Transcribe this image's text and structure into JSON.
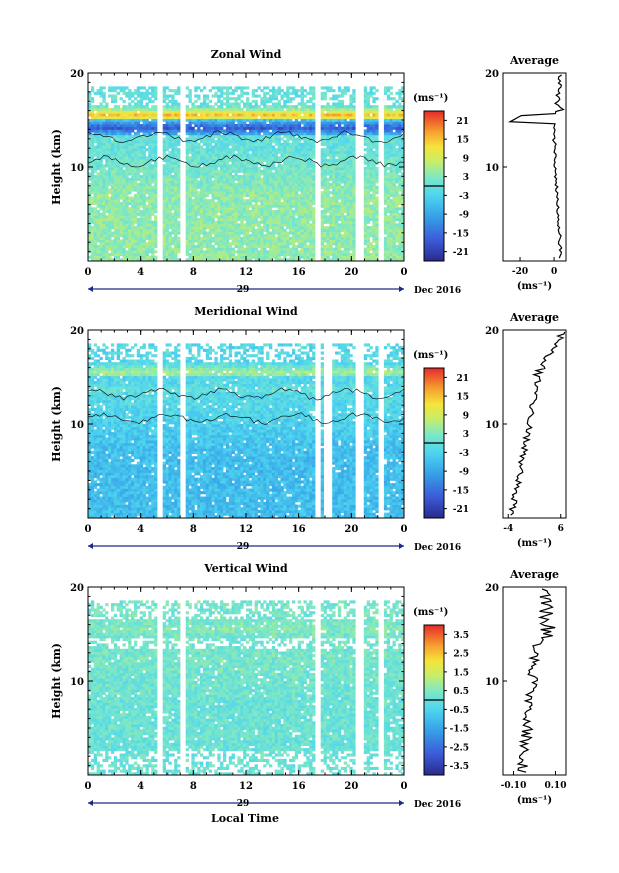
{
  "figure": {
    "xlabel": "Local Time",
    "date_label": "Dec 2016",
    "day_label": "29"
  },
  "chart_data": [
    {
      "type": "heatmap",
      "title": "Zonal Wind",
      "ylabel": "Height (km)",
      "ylim": [
        0,
        20
      ],
      "yticks": [
        "10",
        "20"
      ],
      "xlim": [
        0,
        24
      ],
      "xticks": [
        "0",
        "4",
        "8",
        "12",
        "16",
        "20",
        "0"
      ],
      "colorbar": {
        "unit": "(ms⁻¹)",
        "min": -24,
        "max": 24,
        "ticks": [
          "21",
          "15",
          "9",
          "3",
          "-3",
          "-9",
          "-15",
          "-21"
        ]
      },
      "gaps_hours": [
        5.5,
        7.2,
        17.4,
        20.6,
        22.2
      ],
      "field": {
        "low": 4,
        "mid": 0,
        "high_peak": 16,
        "high_height": 15.5,
        "deep": -18,
        "deep_height": 14.2
      },
      "profile": {
        "title": "Average",
        "xlabel": "(ms⁻¹)",
        "xticks": [
          "-20",
          "0"
        ],
        "xlim": [
          -30,
          7
        ]
      }
    },
    {
      "type": "heatmap",
      "title": "Meridional Wind",
      "ylabel": "Height (km)",
      "ylim": [
        0,
        20
      ],
      "yticks": [
        "10",
        "20"
      ],
      "xlim": [
        0,
        24
      ],
      "xticks": [
        "0",
        "4",
        "8",
        "12",
        "16",
        "20",
        "0"
      ],
      "colorbar": {
        "unit": "(ms⁻¹)",
        "min": -24,
        "max": 24,
        "ticks": [
          "21",
          "15",
          "9",
          "3",
          "-3",
          "-9",
          "-15",
          "-21"
        ]
      },
      "gaps_hours": [
        5.5,
        7.2,
        17.4,
        18.2,
        20.6,
        22.2
      ],
      "field": {
        "low": -6,
        "mid": -2,
        "high_peak": 6,
        "high_height": 15.5,
        "deep": 2,
        "deep_height": 13
      },
      "profile": {
        "title": "Average",
        "xlabel": "(ms⁻¹)",
        "xticks": [
          "-4",
          "6"
        ],
        "xlim": [
          -5,
          7
        ]
      }
    },
    {
      "type": "heatmap",
      "title": "Vertical Wind",
      "ylabel": "Height (km)",
      "ylim": [
        0,
        20
      ],
      "yticks": [
        "10",
        "20"
      ],
      "xlim": [
        0,
        24
      ],
      "xticks": [
        "0",
        "4",
        "8",
        "12",
        "16",
        "20",
        "0"
      ],
      "colorbar": {
        "unit": "(ms⁻¹)",
        "min": -4,
        "max": 4,
        "ticks": [
          "3.5",
          "2.5",
          "1.5",
          "0.5",
          "-0.5",
          "-1.5",
          "-2.5",
          "-3.5"
        ]
      },
      "gaps_hours": [
        5.5,
        7.2,
        17.4,
        20.6,
        22.2
      ],
      "field": {
        "low": 0.1,
        "mid": 0.3,
        "high_peak": 0.5,
        "high_height": 15.5,
        "deep": 0.2,
        "deep_height": 13
      },
      "profile": {
        "title": "Average",
        "xlabel": "(ms⁻¹)",
        "xticks": [
          "-0.10",
          "0.10"
        ],
        "xlim": [
          -0.15,
          0.15
        ]
      }
    }
  ]
}
